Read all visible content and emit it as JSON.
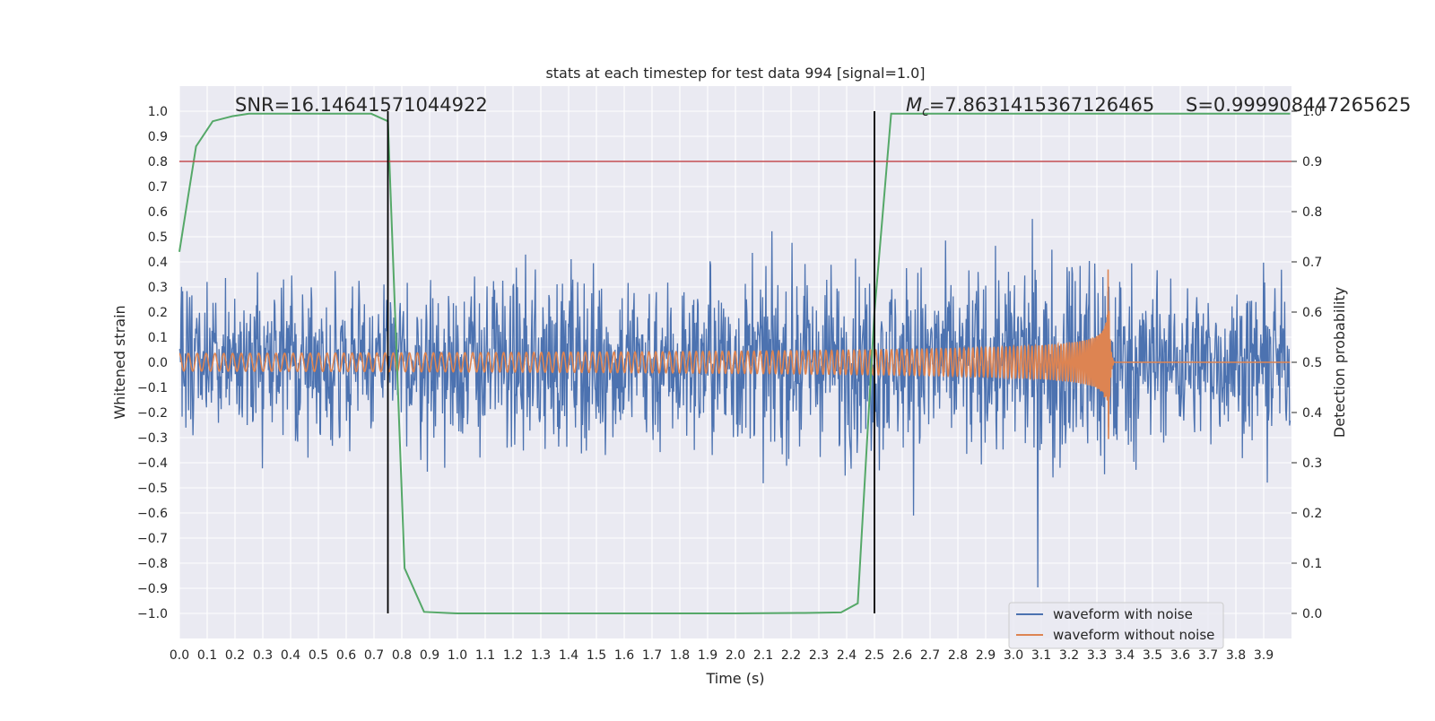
{
  "chart_data": {
    "type": "line",
    "title": "stats at each timestep for test data 994 [signal=1.0]",
    "xlabel": "Time (s)",
    "ylabel": "Whitened strain",
    "y2label": "Detection probability",
    "xlim": [
      0.0,
      4.0
    ],
    "ylim": [
      -1.1,
      1.1
    ],
    "y2lim": [
      -0.05,
      1.05
    ],
    "x_ticks": [
      0.0,
      0.1,
      0.2,
      0.3,
      0.4,
      0.5,
      0.6,
      0.7,
      0.8,
      0.9,
      1.0,
      1.1,
      1.2,
      1.3,
      1.4,
      1.5,
      1.6,
      1.7,
      1.8,
      1.9,
      2.0,
      2.1,
      2.2,
      2.3,
      2.4,
      2.5,
      2.6,
      2.7,
      2.8,
      2.9,
      3.0,
      3.1,
      3.2,
      3.3,
      3.4,
      3.5,
      3.6,
      3.7,
      3.8,
      3.9
    ],
    "y_ticks": [
      1.0,
      0.9,
      0.8,
      0.7,
      0.6,
      0.5,
      0.4,
      0.3,
      0.2,
      0.1,
      0.0,
      -0.1,
      -0.2,
      -0.3,
      -0.4,
      -0.5,
      -0.6,
      -0.7,
      -0.8,
      -0.9,
      -1.0
    ],
    "y2_ticks": [
      1.0,
      0.9,
      0.8,
      0.7,
      0.6,
      0.5,
      0.4,
      0.3,
      0.2,
      0.1,
      0.0
    ],
    "grid": true,
    "legend_position": "lower-right",
    "annotations": {
      "snr": "SNR=16.14641571044922",
      "mc": "=7.8631415367126465",
      "mc_symbol": "M",
      "mc_subscript": "c",
      "s": "S=0.999908447265625"
    },
    "vertical_lines": [
      0.75,
      2.5
    ],
    "threshold_line": {
      "y2": 0.9,
      "color": "#c44e52"
    },
    "noise_envelope": {
      "x": [
        0.0,
        0.5,
        1.0,
        1.5,
        2.0,
        2.5,
        3.0,
        3.2,
        3.3,
        3.34,
        3.5,
        3.99
      ],
      "amplitude": [
        0.35,
        0.4,
        0.42,
        0.42,
        0.43,
        0.45,
        0.47,
        0.5,
        0.55,
        0.55,
        0.38,
        0.38
      ]
    },
    "signal": {
      "t_start": 0.0,
      "t_merge": 3.34,
      "start_freq_hz": 31,
      "start_amplitude": 0.035,
      "peak_amplitude": 0.48
    },
    "detection_probability": {
      "x": [
        0.0,
        0.06,
        0.12,
        0.19,
        0.25,
        0.31,
        0.5,
        0.69,
        0.75,
        0.81,
        0.88,
        1.0,
        1.5,
        2.0,
        2.25,
        2.38,
        2.44,
        2.5,
        2.56,
        2.63,
        3.0,
        3.5,
        4.0
      ],
      "y": [
        0.72,
        0.93,
        0.98,
        0.99,
        0.995,
        0.995,
        0.995,
        0.995,
        0.98,
        0.09,
        0.003,
        0.0,
        0.0,
        0.0,
        0.001,
        0.002,
        0.02,
        0.6,
        0.995,
        0.995,
        0.995,
        0.995,
        0.995
      ]
    },
    "series": [
      {
        "name": "waveform with noise",
        "color": "#4c72b0"
      },
      {
        "name": "waveform without noise",
        "color": "#dd8452"
      },
      {
        "color": "#55a868"
      }
    ],
    "background_color": "#eaeaf2",
    "vline_color": "#000000"
  }
}
